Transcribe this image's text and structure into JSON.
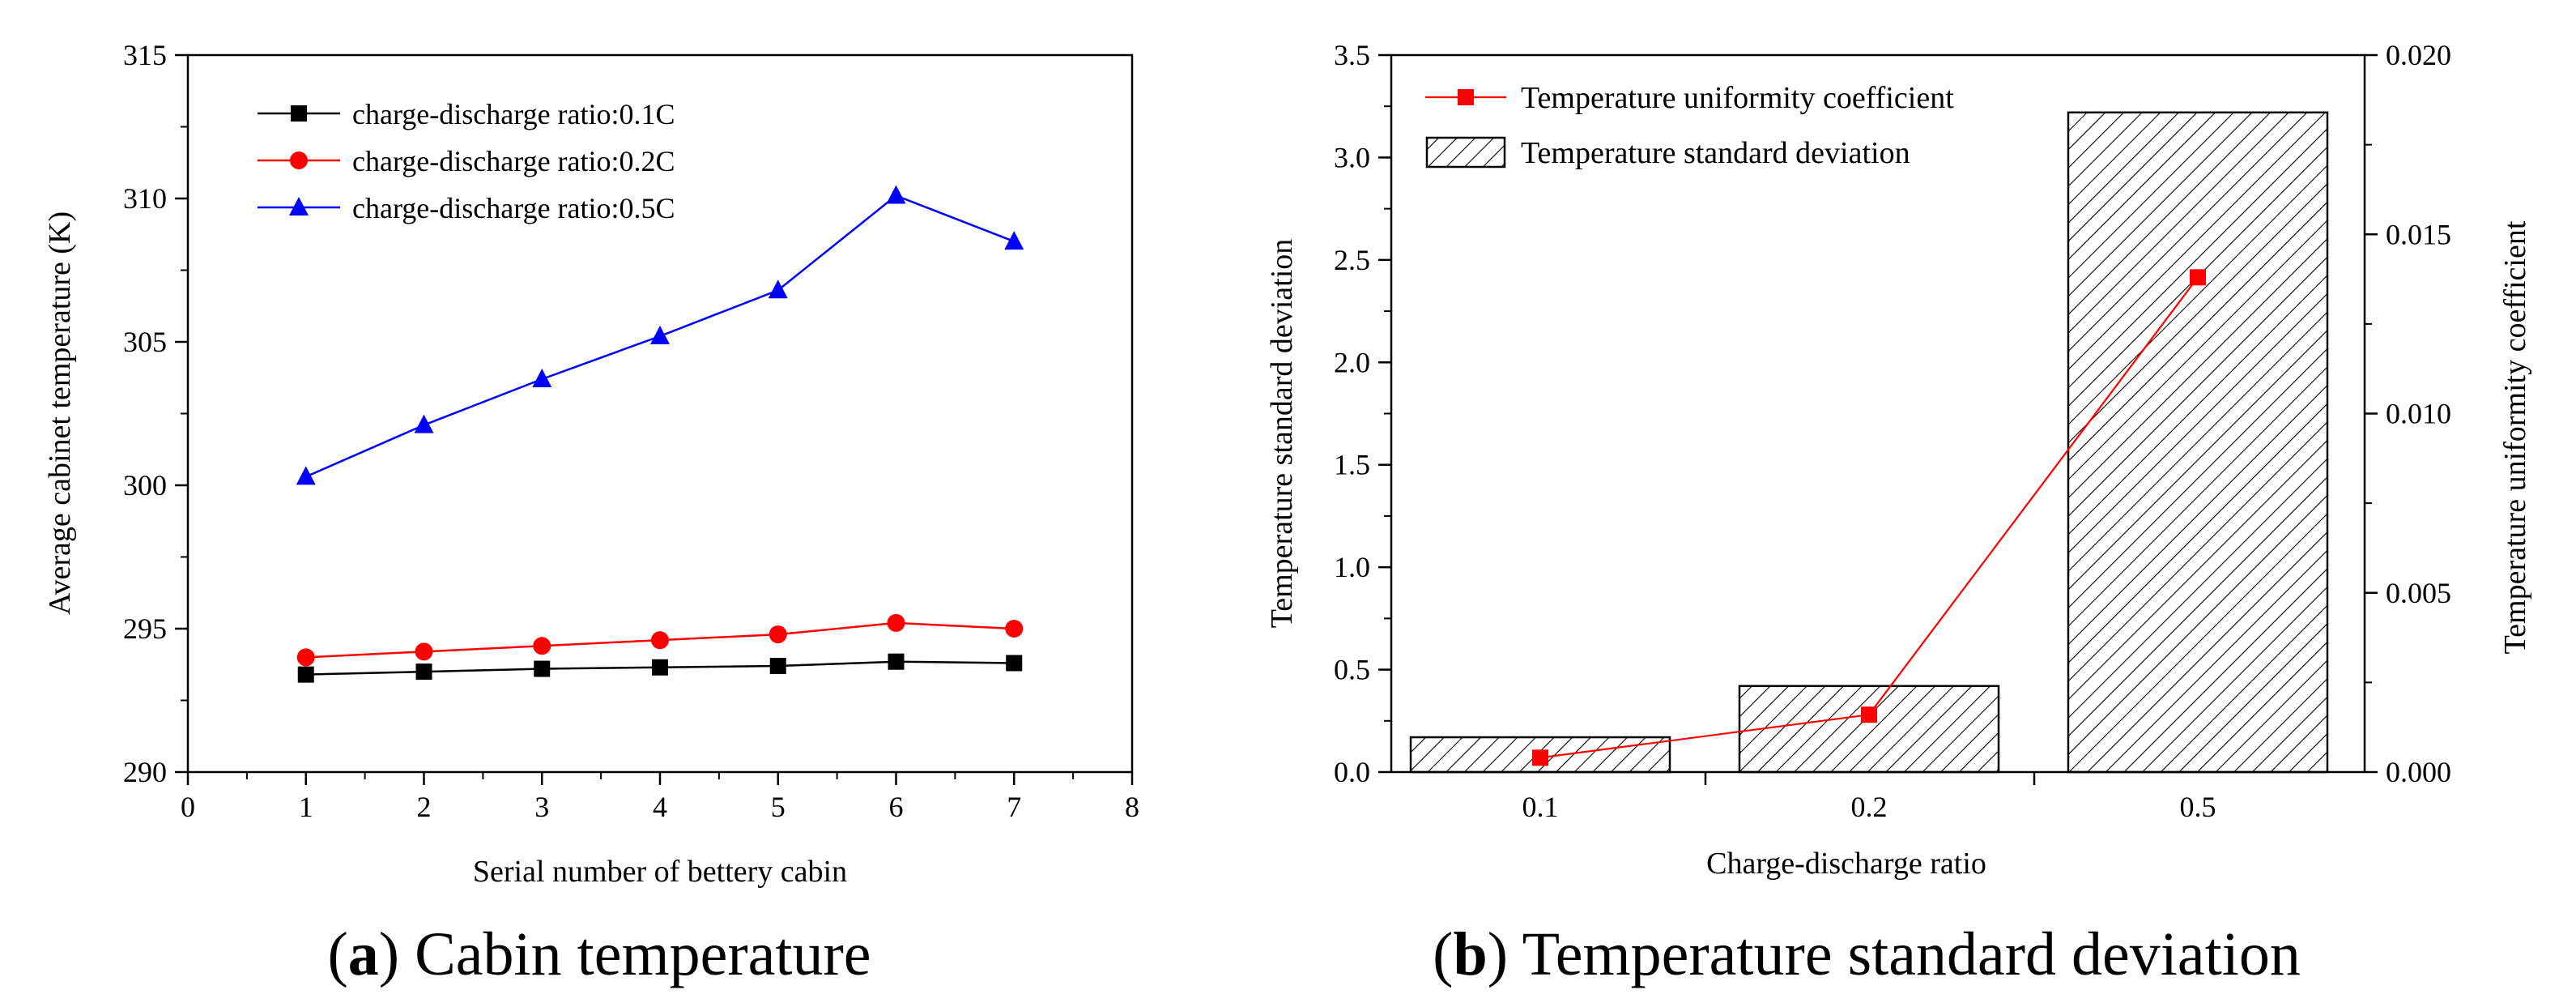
{
  "chart_data": [
    {
      "id": "a",
      "type": "line",
      "caption_letter": "a",
      "caption_text": "Cabin temperature",
      "title": "",
      "xlabel": "Serial number of bettery cabin",
      "ylabel": "Average cabinet temperature (K)",
      "xlim": [
        0,
        8
      ],
      "ylim": [
        290,
        315
      ],
      "xticks": [
        "0",
        "1",
        "2",
        "3",
        "4",
        "5",
        "6",
        "7",
        "8"
      ],
      "yticks": [
        "290",
        "295",
        "300",
        "305",
        "310",
        "315"
      ],
      "grid": false,
      "legend_position": "top-left",
      "x": [
        1,
        2,
        3,
        4,
        5,
        6,
        7
      ],
      "series": [
        {
          "name": "charge-discharge ratio:0.1C",
          "color": "#000000",
          "marker": "square",
          "values": [
            293.4,
            293.5,
            293.6,
            293.65,
            293.7,
            293.85,
            293.8
          ]
        },
        {
          "name": "charge-discharge ratio:0.2C",
          "color": "#ff0000",
          "marker": "circle",
          "values": [
            294.0,
            294.2,
            294.4,
            294.6,
            294.8,
            295.2,
            295.0
          ]
        },
        {
          "name": "charge-discharge ratio:0.5C",
          "color": "#0000ff",
          "marker": "triangle",
          "values": [
            300.3,
            302.1,
            303.7,
            305.2,
            306.8,
            310.1,
            308.5
          ]
        }
      ]
    },
    {
      "id": "b",
      "type": "bar",
      "caption_letter": "b",
      "caption_text": "Temperature standard deviation",
      "title": "",
      "xlabel": "Charge-discharge ratio",
      "ylabel": "Temperature standard deviation",
      "y2label": "Temperature uniformity coefficient",
      "categories": [
        "0.1",
        "0.2",
        "0.5"
      ],
      "ylim": [
        0,
        3.5
      ],
      "y2lim": [
        0,
        0.02
      ],
      "yticks": [
        "0.0",
        "0.5",
        "1.0",
        "1.5",
        "2.0",
        "2.5",
        "3.0",
        "3.5"
      ],
      "y2ticks": [
        "0.000",
        "0.005",
        "0.010",
        "0.015",
        "0.020"
      ],
      "grid": false,
      "legend_position": "top-left",
      "series": [
        {
          "name": "Temperature standard deviation",
          "type": "bar",
          "axis": "left",
          "pattern": "diagonal-hatch",
          "values": [
            0.17,
            0.42,
            3.22
          ]
        },
        {
          "name": "Temperature uniformity coefficient",
          "type": "line",
          "axis": "right",
          "color": "#ff0000",
          "marker": "square",
          "values": [
            0.0004,
            0.0016,
            0.0138
          ]
        }
      ]
    }
  ]
}
